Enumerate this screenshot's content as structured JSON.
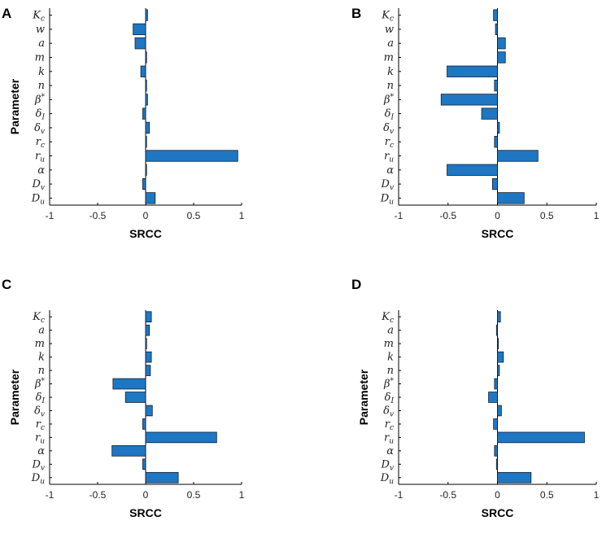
{
  "colors": {
    "bar": "#1f77c4",
    "bar_edge": "#0d1f33",
    "axis": "#000000"
  },
  "chart_data": [
    {
      "panel": "A",
      "type": "bar",
      "orientation": "horizontal",
      "xlabel": "SRCC",
      "ylabel": "Parameter",
      "xlim": [
        -1,
        1
      ],
      "xticks": [
        "-1",
        "-0.5",
        "0",
        "0.5",
        "1"
      ],
      "categories": [
        "K_c",
        "w",
        "a",
        "m",
        "k",
        "n",
        "β*",
        "δ_I",
        "δ_v",
        "r_c",
        "r_u",
        "α",
        "D_v",
        "D_u"
      ],
      "values": [
        0.02,
        -0.13,
        -0.11,
        0.0,
        -0.05,
        0.01,
        0.02,
        -0.03,
        0.04,
        0.01,
        0.96,
        0.0,
        -0.03,
        0.1
      ]
    },
    {
      "panel": "B",
      "type": "bar",
      "orientation": "horizontal",
      "xlabel": "SRCC",
      "ylabel": "",
      "xlim": [
        -1,
        1
      ],
      "xticks": [
        "-1",
        "-0.5",
        "0",
        "0.5",
        "1"
      ],
      "categories": [
        "K_c",
        "w",
        "a",
        "m",
        "k",
        "n",
        "β*",
        "δ_I",
        "δ_v",
        "r_c",
        "r_u",
        "α",
        "D_v",
        "D_u"
      ],
      "values": [
        -0.04,
        -0.02,
        0.08,
        0.08,
        -0.51,
        -0.03,
        -0.57,
        -0.16,
        0.02,
        -0.03,
        0.41,
        -0.51,
        -0.05,
        0.27
      ]
    },
    {
      "panel": "C",
      "type": "bar",
      "orientation": "horizontal",
      "xlabel": "SRCC",
      "ylabel": "Parameter",
      "xlim": [
        -1,
        1
      ],
      "xticks": [
        "-1",
        "-0.5",
        "0",
        "0.5",
        "1"
      ],
      "categories": [
        "K_c",
        "a",
        "m",
        "k",
        "n",
        "β*",
        "δ_I",
        "δ_v",
        "r_c",
        "r_u",
        "α",
        "D_v",
        "D_u"
      ],
      "values": [
        0.06,
        0.04,
        0.01,
        0.06,
        0.05,
        -0.34,
        -0.21,
        0.07,
        -0.03,
        0.74,
        -0.35,
        -0.03,
        0.34
      ]
    },
    {
      "panel": "D",
      "type": "bar",
      "orientation": "horizontal",
      "xlabel": "SRCC",
      "ylabel": "Parameter",
      "xlim": [
        -1,
        1
      ],
      "xticks": [
        "-1",
        "-0.5",
        "0",
        "0.5",
        "1"
      ],
      "categories": [
        "K_c",
        "a",
        "m",
        "k",
        "n",
        "β*",
        "δ_I",
        "δ_v",
        "r_c",
        "r_u",
        "α",
        "D_v",
        "D_u"
      ],
      "values": [
        0.03,
        -0.01,
        0.0,
        0.06,
        0.02,
        -0.03,
        -0.09,
        0.04,
        -0.04,
        0.88,
        -0.03,
        -0.01,
        0.34
      ]
    }
  ]
}
